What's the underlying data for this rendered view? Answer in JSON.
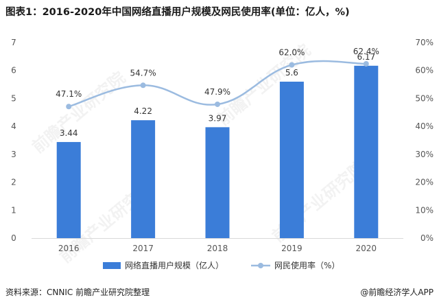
{
  "title": "图表1：2016-2020年中国网络直播用户规模及网民使用率(单位：亿人，%)",
  "source": "资料来源：CNNIC 前瞻产业研究院整理",
  "credit": "@前瞻经济学人APP",
  "watermark": "前瞻产业研究院",
  "colors": {
    "bar": "#3b7dd8",
    "line": "#9bbbe0",
    "axis_text": "#555555",
    "grid": "#e6e6e6"
  },
  "chart_data": {
    "type": "bar+line",
    "categories": [
      "2016",
      "2017",
      "2018",
      "2019",
      "2020"
    ],
    "series": [
      {
        "name": "网络直播用户规模（亿人）",
        "type": "bar",
        "axis": "left",
        "values": [
          3.44,
          4.22,
          3.97,
          5.6,
          6.17
        ],
        "labels": [
          "3.44",
          "4.22",
          "3.97",
          "5.6",
          "6.17"
        ]
      },
      {
        "name": "网民使用率（%）",
        "type": "line",
        "axis": "right",
        "smooth": true,
        "values": [
          47.1,
          54.7,
          47.9,
          62.0,
          62.4
        ],
        "labels": [
          "47.1%",
          "54.7%",
          "47.9%",
          "62.0%",
          "62.4%"
        ]
      }
    ],
    "y_left": {
      "min": 0,
      "max": 7,
      "ticks": [
        "0",
        "1",
        "2",
        "3",
        "4",
        "5",
        "6",
        "7"
      ]
    },
    "y_right": {
      "min": 0,
      "max": 70,
      "ticks": [
        "0%",
        "10%",
        "20%",
        "30%",
        "40%",
        "50%",
        "60%",
        "70%"
      ]
    },
    "legend_position": "bottom-center",
    "grid": false
  }
}
